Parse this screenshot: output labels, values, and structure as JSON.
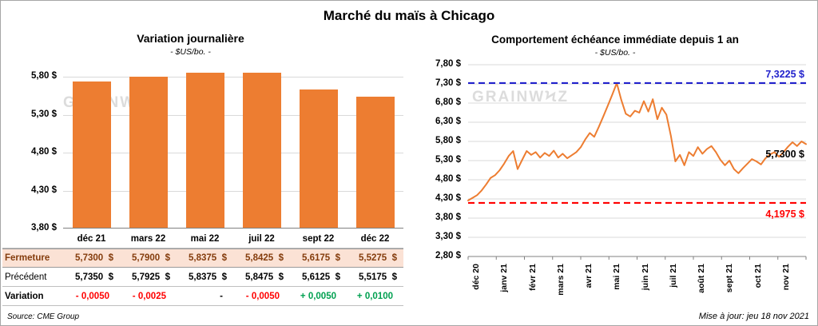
{
  "page": {
    "title": "Marché du maïs à Chicago",
    "source": "Source: CME Group",
    "updated": "Mise à jour: jeu 18 nov 2021"
  },
  "watermark": "grainwϟz",
  "chart_data": [
    {
      "type": "bar",
      "title": "Variation  journalière",
      "subtitle": "- $US/bo. -",
      "categories": [
        "déc 21",
        "mars 22",
        "mai 22",
        "juil 22",
        "sept 22",
        "déc 22"
      ],
      "values": [
        5.73,
        5.79,
        5.8375,
        5.8425,
        5.6175,
        5.5275
      ],
      "ylim": [
        3.8,
        5.8
      ],
      "yticks": [
        {
          "v": 5.8,
          "label": "5,80 $"
        },
        {
          "v": 5.3,
          "label": "5,30 $"
        },
        {
          "v": 4.8,
          "label": "4,80 $"
        },
        {
          "v": 4.3,
          "label": "4,30 $"
        },
        {
          "v": 3.8,
          "label": "3,80 $"
        }
      ],
      "bar_color": "#ED7D31",
      "grid": true,
      "table": {
        "rows": [
          {
            "name": "fermeture",
            "label": "Fermeture",
            "cells": [
              "5,7300  $",
              "5,7900  $",
              "5,8375  $",
              "5,8425  $",
              "5,6175  $",
              "5,5275  $"
            ]
          },
          {
            "name": "precedent",
            "label": "Précédent",
            "cells": [
              "5,7350  $",
              "5,7925  $",
              "5,8375  $",
              "5,8475  $",
              "5,6125  $",
              "5,5175  $"
            ]
          },
          {
            "name": "variation",
            "label": "Variation",
            "cells": [
              "- 0,0050",
              "- 0,0025",
              "-",
              "- 0,0050",
              "+ 0,0050",
              "+ 0,0100"
            ]
          }
        ]
      }
    },
    {
      "type": "line",
      "title": "Comportement  échéance  immédiate  depuis 1 an",
      "subtitle": "- $US/bo. -",
      "x_labels": [
        "déc 20",
        "janv 21",
        "févr 21",
        "mars 21",
        "avr 21",
        "mai 21",
        "juin 21",
        "juil 21",
        "août 21",
        "sept 21",
        "oct 21",
        "nov 21"
      ],
      "values": [
        4.26,
        4.33,
        4.4,
        4.52,
        4.68,
        4.85,
        4.92,
        5.05,
        5.22,
        5.42,
        5.55,
        5.08,
        5.32,
        5.55,
        5.45,
        5.52,
        5.38,
        5.5,
        5.42,
        5.56,
        5.38,
        5.48,
        5.36,
        5.44,
        5.52,
        5.65,
        5.85,
        6.02,
        5.92,
        6.18,
        6.45,
        6.73,
        7.02,
        7.32,
        6.88,
        6.52,
        6.45,
        6.6,
        6.55,
        6.85,
        6.58,
        6.9,
        6.38,
        6.68,
        6.5,
        5.95,
        5.28,
        5.45,
        5.18,
        5.52,
        5.42,
        5.65,
        5.48,
        5.6,
        5.68,
        5.52,
        5.32,
        5.18,
        5.3,
        5.08,
        4.97,
        5.1,
        5.22,
        5.34,
        5.28,
        5.2,
        5.36,
        5.46,
        5.52,
        5.4,
        5.52,
        5.66,
        5.78,
        5.68,
        5.8,
        5.73
      ],
      "ylim": [
        2.8,
        7.8
      ],
      "yticks": [
        {
          "v": 7.8,
          "label": "7,80 $"
        },
        {
          "v": 7.3,
          "label": "7,30 $"
        },
        {
          "v": 6.8,
          "label": "6,80 $"
        },
        {
          "v": 6.3,
          "label": "6,30 $"
        },
        {
          "v": 5.8,
          "label": "5,80 $"
        },
        {
          "v": 5.3,
          "label": "5,30 $"
        },
        {
          "v": 4.8,
          "label": "4,80 $"
        },
        {
          "v": 4.3,
          "label": "4,30 $"
        },
        {
          "v": 3.8,
          "label": "3,80 $"
        },
        {
          "v": 3.3,
          "label": "3,30 $"
        },
        {
          "v": 2.8,
          "label": "2,80 $"
        }
      ],
      "line_color": "#ED7D31",
      "grid": true,
      "legend": "none",
      "annotations": {
        "max": {
          "value": 7.3225,
          "label": "7,3225 $",
          "color": "#2222CC"
        },
        "min": {
          "value": 4.1975,
          "label": "4,1975 $",
          "color": "#FF0000"
        },
        "last": {
          "value": 5.73,
          "label": "5,7300 $",
          "color": "#000000"
        }
      }
    }
  ]
}
